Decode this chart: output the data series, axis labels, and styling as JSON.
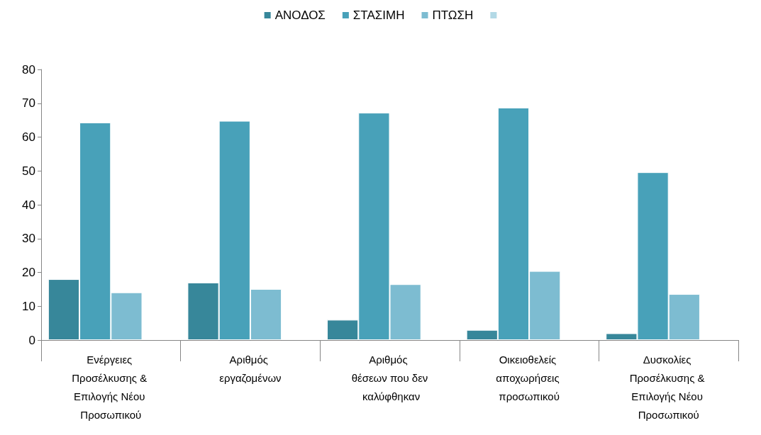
{
  "chart_data": {
    "type": "bar",
    "categories": [
      "Ενέργειες Προσέλκυσης & Επιλογής Νέου Προσωπικού",
      "Αριθμός εργαζομένων",
      "Αριθμός θέσεων που δεν καλύφθηκαν",
      "Οικειοθελείς αποχωρήσεις προσωπικού",
      "Δυσκολίες Προσέλκυσης & Επιλογής Νέου Προσωπικού"
    ],
    "series": [
      {
        "name": "ΑΝΟΔΟΣ",
        "color": "#37879a",
        "values": [
          18,
          17,
          6,
          3,
          2
        ]
      },
      {
        "name": "ΣΤΑΣΙΜΗ",
        "color": "#48a1b9",
        "values": [
          64.3,
          64.8,
          67.2,
          68.7,
          49.6
        ]
      },
      {
        "name": "ΠΤΩΣΗ",
        "color": "#7dbcd1",
        "values": [
          14.1,
          15.1,
          16.5,
          20.4,
          13.6
        ]
      },
      {
        "color": "#b3d9e6",
        "values": [
          null,
          null,
          null,
          null,
          null
        ]
      }
    ],
    "ylim": [
      0,
      80
    ],
    "yticks": [
      0,
      10,
      20,
      30,
      40,
      50,
      60,
      70,
      80
    ],
    "grid": false,
    "legend": "top"
  }
}
